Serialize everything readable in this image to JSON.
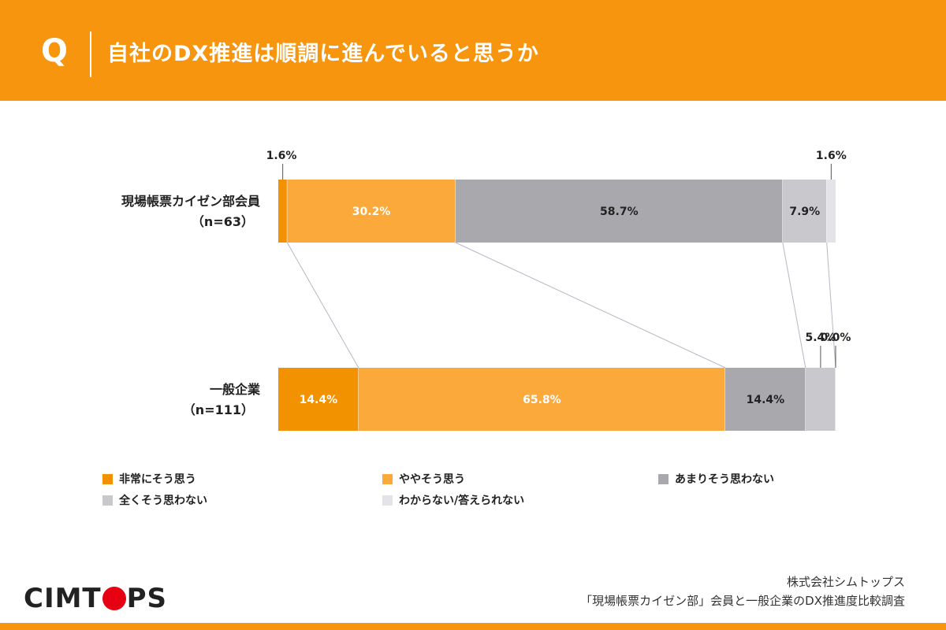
{
  "header": {
    "q_mark": "Q",
    "question": "自社のDX推進は順調に進んでいると思うか"
  },
  "footer": {
    "company": "株式会社シムトップス",
    "survey_title": "「現場帳票カイゼン部」会員と一般企業のDX推進度比較調査",
    "logo_before": "CIMT",
    "logo_after": "PS"
  },
  "chart_data": {
    "type": "bar",
    "orientation": "horizontal",
    "stacked": "percent",
    "categories": [
      "現場帳票カイゼン部会員（n=63）",
      "一般企業（n=111）"
    ],
    "category_labels": [
      [
        "現場帳票カイゼン部会員",
        "（n=63）"
      ],
      [
        "一般企業",
        "（n=111）"
      ]
    ],
    "series": [
      {
        "name": "非常にそう思う",
        "color": "#f39200",
        "values": [
          1.6,
          14.4
        ],
        "labels": [
          "1.6%",
          "14.4%"
        ]
      },
      {
        "name": "ややそう思う",
        "color": "#faa93a",
        "values": [
          30.2,
          65.8
        ],
        "labels": [
          "30.2%",
          "65.8%"
        ]
      },
      {
        "name": "あまりそう思わない",
        "color": "#a9a8ad",
        "values": [
          58.7,
          14.4
        ],
        "labels": [
          "58.7%",
          "14.4%"
        ]
      },
      {
        "name": "全くそう思わない",
        "color": "#c9c8cd",
        "values": [
          7.9,
          5.4
        ],
        "labels": [
          "7.9%",
          "5.4%"
        ]
      },
      {
        "name": "わからない/答えられない",
        "color": "#e4e3e7",
        "values": [
          1.6,
          0.0
        ],
        "labels": [
          "1.6%",
          "0.0%"
        ]
      }
    ]
  }
}
